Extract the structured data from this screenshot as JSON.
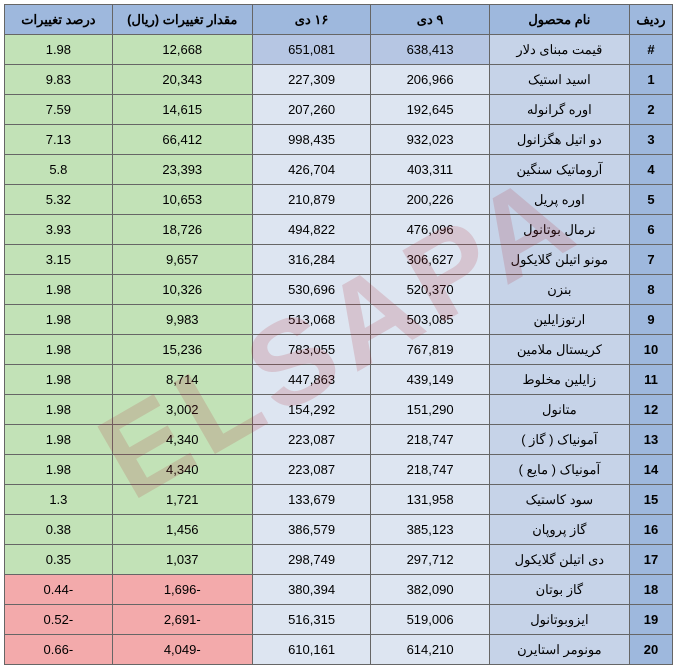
{
  "watermark": "ELSAPA",
  "headers": {
    "idx": "ردیف",
    "name": "نام محصول",
    "date1": "۹ دی",
    "date2": "۱۶ دی",
    "diff": "مقدار تغییرات (ریال)",
    "pct": "درصد تغییرات"
  },
  "colors": {
    "header_bg": "#9eb8dd",
    "name_bg": "#c6d3e8",
    "date_bg": "#dde5f1",
    "highlight_date_bg": "#b6c6e3",
    "pos_bg": "#c2e2b7",
    "neg_bg": "#f3aaab",
    "border": "#666",
    "watermark": "rgba(180,50,60,0.18)"
  },
  "rows": [
    {
      "idx": "#",
      "name": "قیمت مبنای دلار",
      "d1": "638,413",
      "d2": "651,081",
      "diff": "12,668",
      "pct": "1.98",
      "sign": "pos",
      "hl": true
    },
    {
      "idx": "1",
      "name": "اسید استیک",
      "d1": "206,966",
      "d2": "227,309",
      "diff": "20,343",
      "pct": "9.83",
      "sign": "pos",
      "hl": false
    },
    {
      "idx": "2",
      "name": "اوره گرانوله",
      "d1": "192,645",
      "d2": "207,260",
      "diff": "14,615",
      "pct": "7.59",
      "sign": "pos",
      "hl": false
    },
    {
      "idx": "3",
      "name": "دو اتیل هگزانول",
      "d1": "932,023",
      "d2": "998,435",
      "diff": "66,412",
      "pct": "7.13",
      "sign": "pos",
      "hl": false
    },
    {
      "idx": "4",
      "name": "آروماتیک سنگین",
      "d1": "403,311",
      "d2": "426,704",
      "diff": "23,393",
      "pct": "5.8",
      "sign": "pos",
      "hl": false
    },
    {
      "idx": "5",
      "name": "اوره پریل",
      "d1": "200,226",
      "d2": "210,879",
      "diff": "10,653",
      "pct": "5.32",
      "sign": "pos",
      "hl": false
    },
    {
      "idx": "6",
      "name": "نرمال بوتانول",
      "d1": "476,096",
      "d2": "494,822",
      "diff": "18,726",
      "pct": "3.93",
      "sign": "pos",
      "hl": false
    },
    {
      "idx": "7",
      "name": "مونو اتیلن گلایکول",
      "d1": "306,627",
      "d2": "316,284",
      "diff": "9,657",
      "pct": "3.15",
      "sign": "pos",
      "hl": false
    },
    {
      "idx": "8",
      "name": "بنزن",
      "d1": "520,370",
      "d2": "530,696",
      "diff": "10,326",
      "pct": "1.98",
      "sign": "pos",
      "hl": false
    },
    {
      "idx": "9",
      "name": "ارتوزایلین",
      "d1": "503,085",
      "d2": "513,068",
      "diff": "9,983",
      "pct": "1.98",
      "sign": "pos",
      "hl": false
    },
    {
      "idx": "10",
      "name": "کریستال ملامین",
      "d1": "767,819",
      "d2": "783,055",
      "diff": "15,236",
      "pct": "1.98",
      "sign": "pos",
      "hl": false
    },
    {
      "idx": "11",
      "name": "زایلین مخلوط",
      "d1": "439,149",
      "d2": "447,863",
      "diff": "8,714",
      "pct": "1.98",
      "sign": "pos",
      "hl": false
    },
    {
      "idx": "12",
      "name": "متانول",
      "d1": "151,290",
      "d2": "154,292",
      "diff": "3,002",
      "pct": "1.98",
      "sign": "pos",
      "hl": false
    },
    {
      "idx": "13",
      "name": "آمونیاک ( گاز )",
      "d1": "218,747",
      "d2": "223,087",
      "diff": "4,340",
      "pct": "1.98",
      "sign": "pos",
      "hl": false
    },
    {
      "idx": "14",
      "name": "آمونیاک ( مایع )",
      "d1": "218,747",
      "d2": "223,087",
      "diff": "4,340",
      "pct": "1.98",
      "sign": "pos",
      "hl": false
    },
    {
      "idx": "15",
      "name": "سود کاستیک",
      "d1": "131,958",
      "d2": "133,679",
      "diff": "1,721",
      "pct": "1.3",
      "sign": "pos",
      "hl": false
    },
    {
      "idx": "16",
      "name": "گاز پروپان",
      "d1": "385,123",
      "d2": "386,579",
      "diff": "1,456",
      "pct": "0.38",
      "sign": "pos",
      "hl": false
    },
    {
      "idx": "17",
      "name": "دی اتیلن گلایکول",
      "d1": "297,712",
      "d2": "298,749",
      "diff": "1,037",
      "pct": "0.35",
      "sign": "pos",
      "hl": false
    },
    {
      "idx": "18",
      "name": "گاز بوتان",
      "d1": "382,090",
      "d2": "380,394",
      "diff": "-1,696",
      "pct": "-0.44",
      "sign": "neg",
      "hl": false
    },
    {
      "idx": "19",
      "name": "ایزوبوتانول",
      "d1": "519,006",
      "d2": "516,315",
      "diff": "-2,691",
      "pct": "-0.52",
      "sign": "neg",
      "hl": false
    },
    {
      "idx": "20",
      "name": "مونومر استایرن",
      "d1": "614,210",
      "d2": "610,161",
      "diff": "-4,049",
      "pct": "-0.66",
      "sign": "neg",
      "hl": false
    }
  ]
}
